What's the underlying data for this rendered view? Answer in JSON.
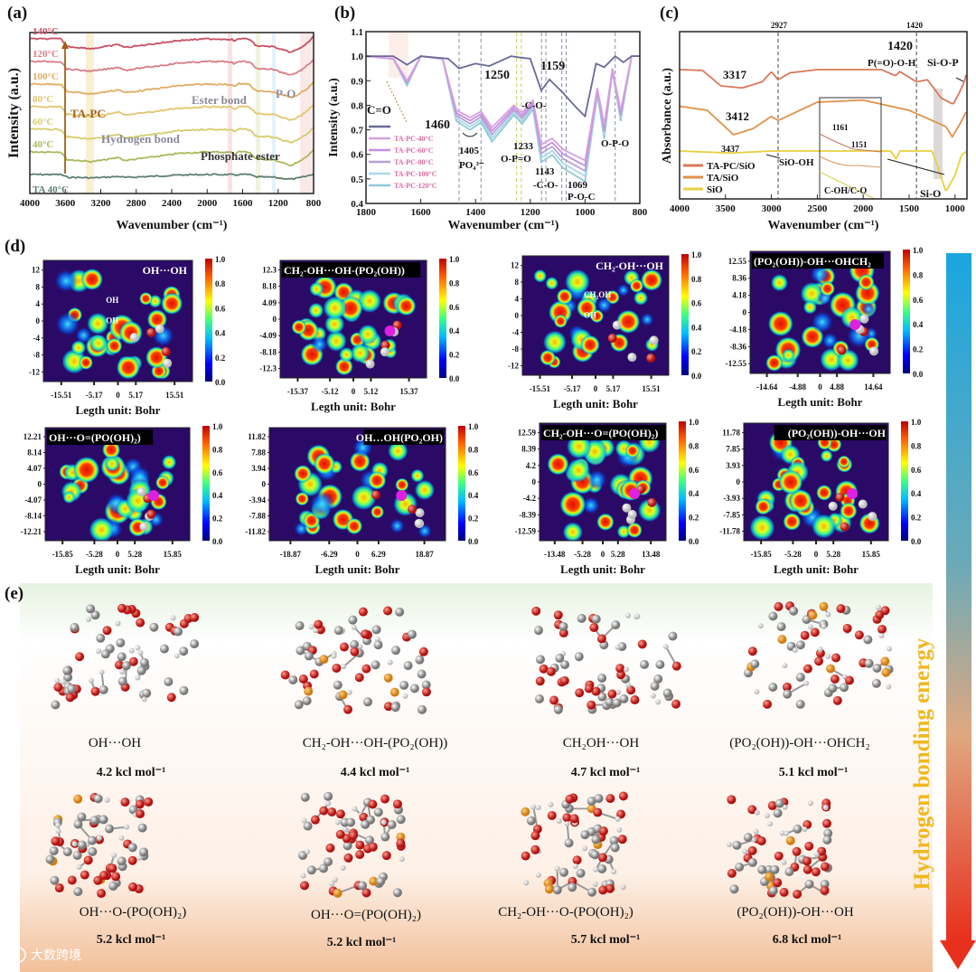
{
  "panels": {
    "a": "(a)",
    "b": "(b)",
    "c": "(c)",
    "d": "(d)",
    "e": "(e)"
  },
  "chart_data": [
    {
      "id": "a",
      "type": "line",
      "xlabel": "Wavenumber (cm⁻¹)",
      "ylabel": "Intensity (a.u.)",
      "xlim": [
        4000,
        800
      ],
      "xticks": [
        "4000",
        "3600",
        "3200",
        "2800",
        "2400",
        "2000",
        "1600",
        "1200",
        "800"
      ],
      "profile": [
        [
          4000,
          0
        ],
        [
          3650,
          0
        ],
        [
          3580,
          -0.35
        ],
        [
          3300,
          -0.45
        ],
        [
          3050,
          -0.3
        ],
        [
          3000,
          -0.25
        ],
        [
          2930,
          -0.4
        ],
        [
          2400,
          -0.12
        ],
        [
          2350,
          -0.08
        ],
        [
          2000,
          0
        ],
        [
          1720,
          -0.02
        ],
        [
          1690,
          -0.12
        ],
        [
          1640,
          0.02
        ],
        [
          1520,
          -0.02
        ],
        [
          1450,
          -0.32
        ],
        [
          1250,
          -0.36
        ],
        [
          1180,
          -0.48
        ],
        [
          1050,
          -0.62
        ],
        [
          960,
          -0.45
        ],
        [
          870,
          -0.2
        ],
        [
          800,
          0.1
        ]
      ],
      "series": [
        {
          "name": "TA 40°C",
          "offset": 0,
          "amp": 0.35,
          "color": "#5f7f70"
        },
        {
          "name": "40°C",
          "offset": 1,
          "amp": 1,
          "color": "#a9b85c"
        },
        {
          "name": "60°C",
          "offset": 2,
          "amp": 1,
          "color": "#d5cd6c"
        },
        {
          "name": "80°C",
          "offset": 3,
          "amp": 1,
          "color": "#e2c56e"
        },
        {
          "name": "100°C",
          "offset": 4,
          "amp": 1,
          "color": "#e3ab62"
        },
        {
          "name": "120°C",
          "offset": 5,
          "amp": 1,
          "color": "#d87d86"
        },
        {
          "name": "140°C",
          "offset": 6,
          "amp": 1,
          "color": "#c94f62"
        }
      ],
      "annotations": {
        "arrow": "TA-PC",
        "hbond": "Hydrogen bond",
        "ester": "Ester bond",
        "po": "P-O",
        "phosphate": "Phosphate ester"
      }
    },
    {
      "id": "b",
      "type": "line",
      "xlabel": "Wavenumber (cm⁻¹)",
      "ylabel": "Intensity (a.u.)",
      "xlim": [
        1800,
        800
      ],
      "ylim": [
        0.4,
        1.1
      ],
      "xticks": [
        "1800",
        "1600",
        "1400",
        "1200",
        "1000",
        "800"
      ],
      "yticks": [
        "0.4",
        "0.5",
        "0.6",
        "0.7",
        "0.8",
        "0.9",
        "1.0",
        "1.1"
      ],
      "ta_series": [
        [
          1800,
          1
        ],
        [
          1700,
          1
        ],
        [
          1650,
          0.965
        ],
        [
          1600,
          1
        ],
        [
          1500,
          0.99
        ],
        [
          1460,
          0.95
        ],
        [
          1400,
          0.97
        ],
        [
          1350,
          0.96
        ],
        [
          1270,
          1
        ],
        [
          1240,
          0.995
        ],
        [
          1200,
          0.99
        ],
        [
          1160,
          0.86
        ],
        [
          1130,
          0.905
        ],
        [
          1080,
          0.85
        ],
        [
          1040,
          0.8
        ],
        [
          1000,
          0.755
        ],
        [
          960,
          0.97
        ],
        [
          930,
          0.955
        ],
        [
          890,
          1
        ],
        [
          860,
          0.975
        ],
        [
          830,
          1
        ],
        [
          800,
          1
        ]
      ],
      "tapc_profile": [
        [
          1800,
          1
        ],
        [
          1700,
          0.99
        ],
        [
          1650,
          0.9
        ],
        [
          1600,
          1
        ],
        [
          1520,
          0.99
        ],
        [
          1470,
          0.78
        ],
        [
          1420,
          0.75
        ],
        [
          1380,
          0.775
        ],
        [
          1340,
          0.71
        ],
        [
          1260,
          0.8
        ],
        [
          1230,
          0.77
        ],
        [
          1190,
          0.82
        ],
        [
          1160,
          0.64
        ],
        [
          1120,
          0.665
        ],
        [
          1080,
          0.62
        ],
        [
          1000,
          0.575
        ],
        [
          955,
          0.87
        ],
        [
          930,
          0.72
        ],
        [
          900,
          0.95
        ],
        [
          870,
          0.78
        ],
        [
          830,
          1
        ],
        [
          800,
          1
        ]
      ],
      "series": [
        {
          "name": "TA-PC-40°C",
          "factor": 1.0,
          "color": "#d8a0e0"
        },
        {
          "name": "TA-PC-60°C",
          "factor": 1.05,
          "color": "#c48fe0"
        },
        {
          "name": "TA-PC-80°C",
          "factor": 1.1,
          "color": "#b8a0d8"
        },
        {
          "name": "TA-PC-100°C",
          "factor": 1.15,
          "color": "#a8d8e8"
        },
        {
          "name": "TA-PC-120°C",
          "factor": 1.2,
          "color": "#90c8d8"
        }
      ],
      "ta_color": "#6a6a9a",
      "dashed_lines": [
        1460,
        1380,
        1250,
        1233,
        1159,
        1143,
        1085,
        1069,
        890
      ],
      "annotations": {
        "co": "C=O",
        "n1460": "1460",
        "n1250": "1250",
        "n1159": "1159",
        "n1405": "1405",
        "po4": "PO₄³⁻",
        "n1233": "1233",
        "opo_eq": "O-P=O",
        "co1": "-C-O-",
        "n1143": "1143",
        "co2": "-C-O-",
        "n1069": "1069",
        "poc": "P-O-C",
        "opo": "O-P-O"
      }
    },
    {
      "id": "c",
      "type": "line",
      "xlabel": "Wavenumber (cm⁻¹)",
      "ylabel": "Absorbance (a.u.)",
      "xlim": [
        4000,
        870
      ],
      "xticks": [
        "4000",
        "3500",
        "3000",
        "2500",
        "2000",
        "1500",
        "1000"
      ],
      "series": [
        {
          "name": "TA-PC/SiO",
          "color": "#d9785a",
          "offset": 2,
          "points": [
            [
              4000,
              0
            ],
            [
              3750,
              -0.02
            ],
            [
              3550,
              -0.4
            ],
            [
              3317,
              -0.45
            ],
            [
              3100,
              -0.3
            ],
            [
              3000,
              -0.05
            ],
            [
              2927,
              -0.25
            ],
            [
              2800,
              -0.08
            ],
            [
              2500,
              0
            ],
            [
              1800,
              0
            ],
            [
              1650,
              -0.15
            ],
            [
              1600,
              -0.05
            ],
            [
              1420,
              -0.3
            ],
            [
              1300,
              -0.25
            ],
            [
              1150,
              -0.7
            ],
            [
              1020,
              -0.85
            ],
            [
              960,
              -0.6
            ],
            [
              900,
              -0.3
            ],
            [
              870,
              -0.05
            ]
          ]
        },
        {
          "name": "TA/SiO",
          "color": "#e0924a",
          "offset": 1,
          "points": [
            [
              4000,
              0.1
            ],
            [
              3700,
              0
            ],
            [
              3412,
              -0.6
            ],
            [
              3200,
              -0.45
            ],
            [
              3000,
              -0.15
            ],
            [
              2927,
              -0.25
            ],
            [
              2500,
              0.2
            ],
            [
              2000,
              0.25
            ],
            [
              1700,
              0.1
            ],
            [
              1500,
              0
            ],
            [
              1300,
              -0.2
            ],
            [
              1100,
              -0.4
            ],
            [
              1030,
              -0.65
            ],
            [
              950,
              -0.35
            ],
            [
              870,
              0
            ]
          ]
        },
        {
          "name": "SiO",
          "color": "#e8d040",
          "offset": 0,
          "points": [
            [
              4000,
              0
            ],
            [
              3437,
              -0.05
            ],
            [
              3000,
              0
            ],
            [
              1700,
              0
            ],
            [
              1640,
              -0.2
            ],
            [
              1600,
              0
            ],
            [
              1250,
              0
            ],
            [
              1200,
              -0.3
            ],
            [
              1100,
              -1.0
            ],
            [
              1000,
              -0.6
            ],
            [
              930,
              -0.1
            ],
            [
              870,
              0
            ]
          ]
        }
      ],
      "dashed_lines": [
        2927,
        1420
      ],
      "annotations": {
        "top2927": "2927",
        "top1420": "1420",
        "n1420": "1420",
        "poh": "P(=O)-O-H",
        "siop": "Si-O-P",
        "n3317": "3317",
        "n3412": "3412",
        "n3437": "3437",
        "sioh": "SiO-OH",
        "n1161": "1161",
        "n1151": "1151",
        "coh": "C-OH/C-O",
        "sio": "Si-O"
      }
    }
  ],
  "heatmaps": [
    {
      "title": "OH···OH",
      "yticks": [
        "12",
        "8",
        "4",
        "0",
        "-4",
        "-8",
        "-12"
      ],
      "xticks": [
        "-15.51",
        "-5.17",
        "0",
        "5.17",
        "15.51"
      ],
      "xlabel": "Legth unit: Bohr",
      "inner": [
        "OH",
        "OH"
      ],
      "dark_title": false
    },
    {
      "title": "CH₂-OH···OH-(PO₂(OH))",
      "yticks": [
        "12.3",
        "8.18",
        "4.09",
        "0",
        "-4.09",
        "-8.18",
        "-12.3"
      ],
      "xticks": [
        "-15.37",
        "-5.12",
        "0",
        "5.12",
        "15.37"
      ],
      "xlabel": "Legth unit: Bohr",
      "inner": [],
      "dark_title": true
    },
    {
      "title": "CH₂-OH···OH",
      "yticks": [
        "12",
        "8",
        "4",
        "0",
        "-4",
        "-8",
        "-12"
      ],
      "xticks": [
        "-15.51",
        "-5.17",
        "0",
        "5.17",
        "15.51"
      ],
      "xlabel": "Legth unit: Bohr",
      "inner": [
        "CH₂OH",
        "OH"
      ],
      "dark_title": false
    },
    {
      "title": "(PO₂(OH))-OH···OHCH₂",
      "yticks": [
        "12.55",
        "8.36",
        "4.18",
        "0",
        "-4.18",
        "-8.36",
        "-12.55"
      ],
      "xticks": [
        "-14.64",
        "-4.88",
        "0",
        "4.88",
        "14.64"
      ],
      "xlabel": "Legth unit: Bohr",
      "inner": [],
      "dark_title": true
    },
    {
      "title": "OH···O=(PO(OH)₂)",
      "yticks": [
        "12.21",
        "8.14",
        "4.07",
        "0",
        "-4.07",
        "-8.14",
        "-12.21"
      ],
      "xticks": [
        "-15.85",
        "-5.28",
        "0",
        "5.28",
        "15.85"
      ],
      "xlabel": "Legth unit: Bohr",
      "inner": [],
      "dark_title": true
    },
    {
      "title": "OH…OH(PO₂OH)",
      "yticks": [
        "11.82",
        "7.88",
        "3.94",
        "0",
        "-3.94",
        "-7.88",
        "-11.82"
      ],
      "xticks": [
        "-18.87",
        "-6.29",
        "0",
        "6.29",
        "18.87"
      ],
      "xlabel": "Legth unit: Bohr",
      "inner": [],
      "dark_title": true
    },
    {
      "title": "CH₂-OH···O=(PO(OH)₂)",
      "yticks": [
        "12.59",
        "8.39",
        "4.2",
        "0",
        "-4.2",
        "-8.39",
        "-12.59"
      ],
      "xticks": [
        "-13.48",
        "-5.28",
        "0",
        "5.28",
        "13.48"
      ],
      "xlabel": "Legth unit: Bohr",
      "inner": [],
      "dark_title": true
    },
    {
      "title": "(PO₂(OH))-OH···OH",
      "yticks": [
        "11.78",
        "7.85",
        "3.93",
        "0",
        "-3.93",
        "-7.85",
        "-11.78"
      ],
      "xticks": [
        "-15.85",
        "-5.28",
        "0",
        "5.28",
        "15.85"
      ],
      "xlabel": "Legth unit: Bohr",
      "inner": [],
      "dark_title": true
    }
  ],
  "colorbar_ticks": [
    "1.0",
    "0.8",
    "0.6",
    "0.4",
    "0.2",
    "0.0"
  ],
  "structures": [
    {
      "name": "OH···OH",
      "energy": "4.2 kcl mol⁻¹"
    },
    {
      "name": "CH₂-OH···OH-(PO₂(OH))",
      "energy": "4.4 kcl mol⁻¹"
    },
    {
      "name": "CH₂OH···OH",
      "energy": "4.7 kcl mol⁻¹"
    },
    {
      "name": "(PO₂(OH))-OH···OHCH₂",
      "energy": "5.1 kcl mol⁻¹"
    },
    {
      "name": "OH···O-(PO(OH)₂)",
      "energy": "5.2 kcl mol⁻¹"
    },
    {
      "name": "OH···O=(PO(OH)₂)",
      "energy": "5.2 kcl mol⁻¹"
    },
    {
      "name": "CH₂-OH···O-(PO(OH)₂)",
      "energy": "5.7 kcl mol⁻¹"
    },
    {
      "name": "(PO₂(OH))-OH···OH",
      "energy": "6.8 kcl mol⁻¹"
    }
  ],
  "energy_axis_label": "Hydrogen bonding energy",
  "watermark": "大数跨境"
}
